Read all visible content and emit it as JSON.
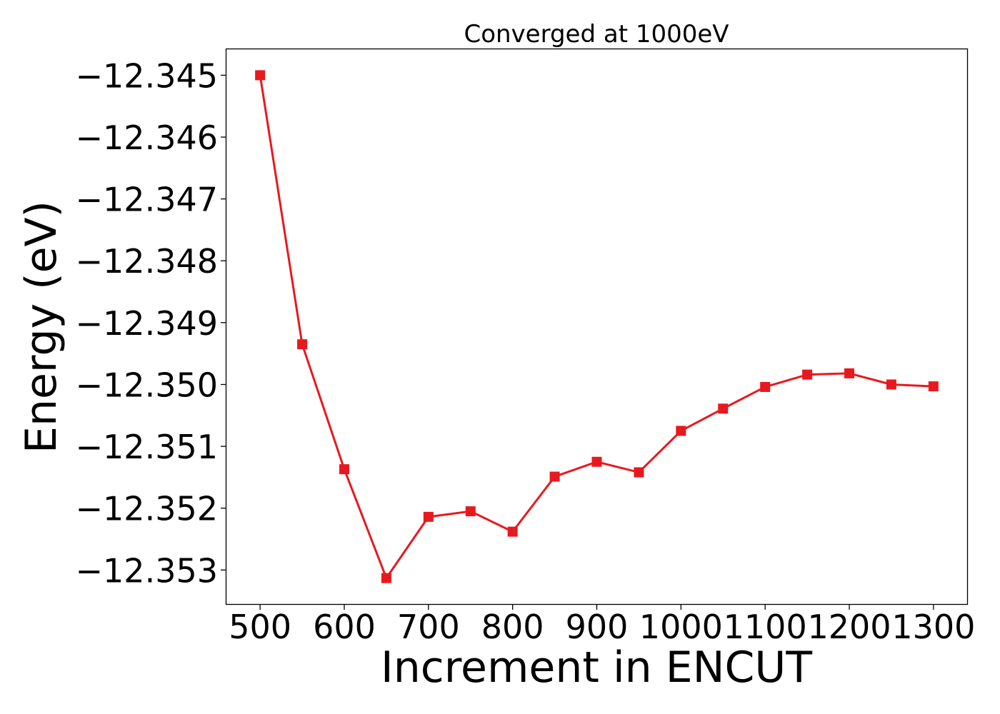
{
  "chart_data": {
    "type": "line",
    "title": "Converged at 1000eV",
    "xlabel": "Increment in ENCUT",
    "ylabel": "Energy (eV)",
    "xlim": [
      460,
      1340
    ],
    "ylim": [
      -12.35355,
      -12.34458
    ],
    "x_ticks": [
      500,
      600,
      700,
      800,
      900,
      1000,
      1100,
      1200,
      1300
    ],
    "x_tick_labels": [
      "500",
      "600",
      "700",
      "800",
      "900",
      "1000",
      "1100",
      "1200",
      "1300"
    ],
    "y_ticks": [
      -12.345,
      -12.346,
      -12.347,
      -12.348,
      -12.349,
      -12.35,
      -12.351,
      -12.352,
      -12.353
    ],
    "y_tick_labels": [
      "−12.345",
      "−12.346",
      "−12.347",
      "−12.348",
      "−12.349",
      "−12.350",
      "−12.351",
      "−12.352",
      "−12.353"
    ],
    "grid": false,
    "legend": "none",
    "series": [
      {
        "color": "#e8191e",
        "marker": "square",
        "x": [
          500,
          550,
          600,
          650,
          700,
          750,
          800,
          850,
          900,
          950,
          1000,
          1050,
          1100,
          1150,
          1200,
          1250,
          1300
        ],
        "y": [
          -12.345,
          -12.34935,
          -12.35137,
          -12.35313,
          -12.35214,
          -12.35205,
          -12.35238,
          -12.35149,
          -12.35125,
          -12.35142,
          -12.35075,
          -12.35039,
          -12.35004,
          -12.34984,
          -12.34982,
          -12.35,
          -12.35003
        ]
      }
    ]
  }
}
